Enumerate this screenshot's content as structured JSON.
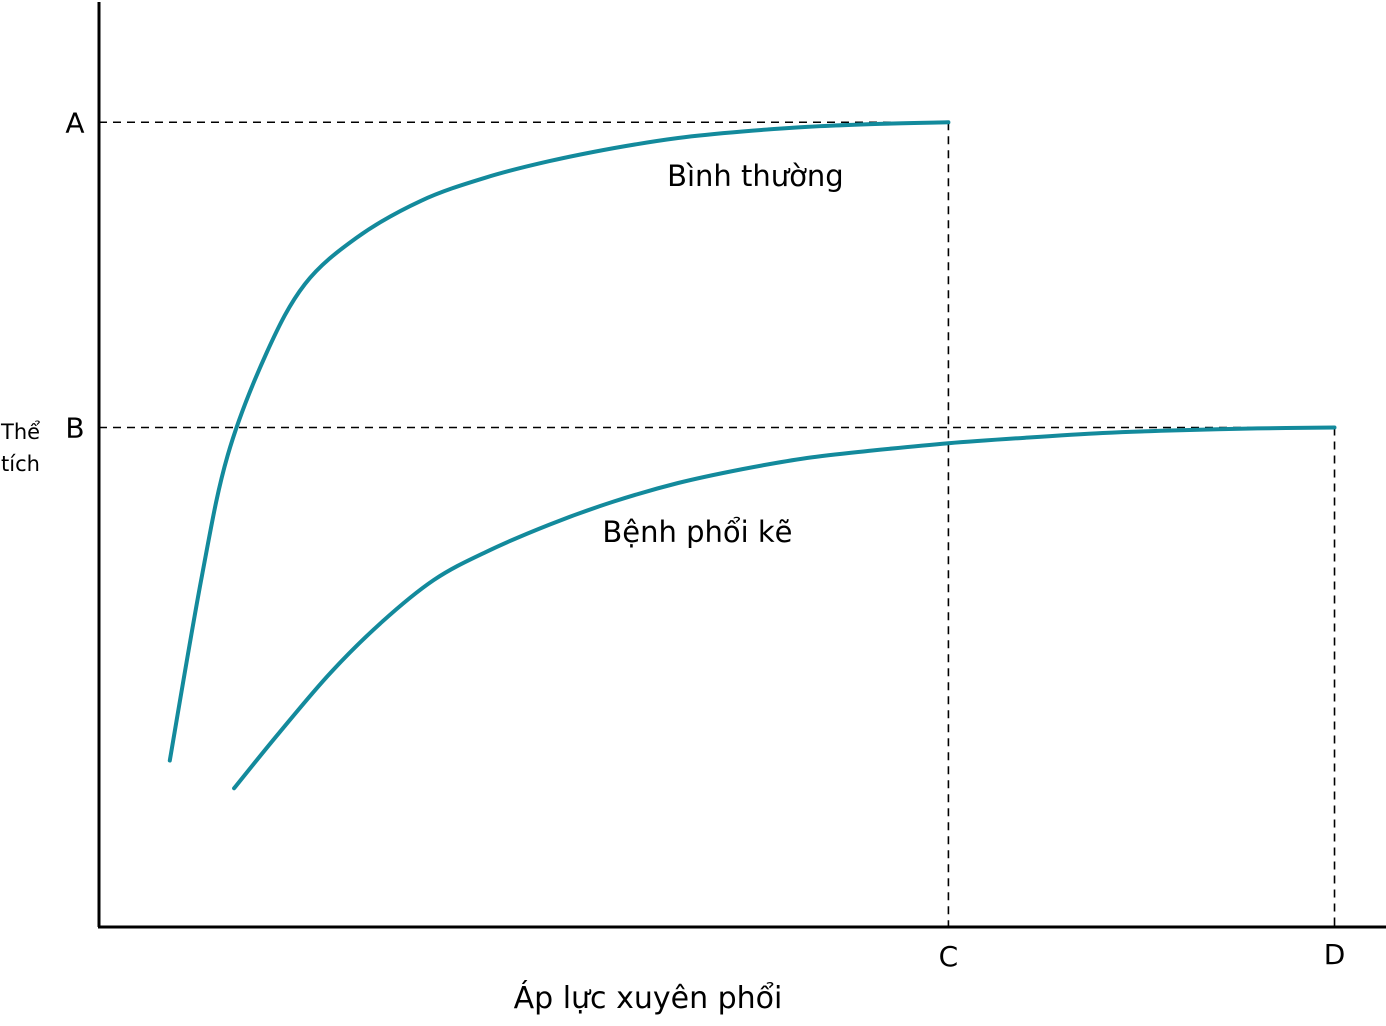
{
  "chart_data": {
    "type": "line",
    "title": "",
    "xlabel": "Áp lực xuyên phổi",
    "ylabel_lines": [
      "Thể",
      "tích"
    ],
    "xlim": [
      0,
      100
    ],
    "ylim": [
      0,
      100
    ],
    "grid": false,
    "x_ticks": [
      {
        "label": "C",
        "value": 66
      },
      {
        "label": "D",
        "value": 96
      }
    ],
    "y_ticks": [
      {
        "label": "A",
        "value": 87
      },
      {
        "label": "B",
        "value": 54
      }
    ],
    "series": [
      {
        "name": "Bình thường",
        "color": "#138a9c",
        "x": [
          5.5,
          8,
          10,
          13,
          16,
          20,
          25,
          30,
          35,
          40,
          45,
          50,
          55,
          60,
          66
        ],
        "y": [
          18,
          38,
          51,
          62,
          69.5,
          74.5,
          78.5,
          81,
          82.8,
          84.2,
          85.3,
          86,
          86.5,
          86.8,
          87
        ]
      },
      {
        "name": "Bệnh phổi kẽ",
        "color": "#138a9c",
        "x": [
          10.5,
          14,
          18,
          22,
          26,
          30,
          35,
          40,
          45,
          50,
          55,
          60,
          66,
          72,
          78,
          84,
          90,
          96
        ],
        "y": [
          15,
          21,
          27.5,
          33,
          37.5,
          40.5,
          43.5,
          46,
          48,
          49.5,
          50.7,
          51.5,
          52.3,
          52.9,
          53.4,
          53.7,
          53.9,
          54
        ]
      }
    ],
    "series_label_positions": [
      {
        "series": "Bình thường",
        "at": [
          51,
          81
        ]
      },
      {
        "series": "Bệnh phổi kẽ",
        "at": [
          46.5,
          42.5
        ]
      }
    ]
  }
}
